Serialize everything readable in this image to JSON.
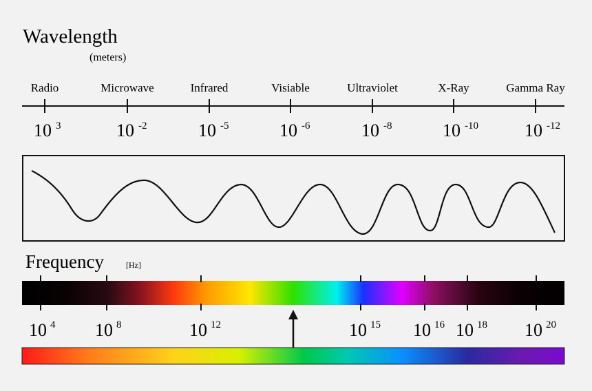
{
  "title": "Wavelength",
  "wavelength_unit": "(meters)",
  "frequency_title": "Frequency",
  "frequency_unit": "[Hz]",
  "bands": [
    {
      "name": "Radio",
      "base": "10",
      "exp": "3"
    },
    {
      "name": "Microwave",
      "base": "10",
      "exp": "-2"
    },
    {
      "name": "Infrared",
      "base": "10",
      "exp": "-5"
    },
    {
      "name": "Visiable",
      "base": "10",
      "exp": "-6"
    },
    {
      "name": "Ultraviolet",
      "base": "10",
      "exp": "-8"
    },
    {
      "name": "X-Ray",
      "base": "10",
      "exp": "-10"
    },
    {
      "name": "Gamma Ray",
      "base": "10",
      "exp": "-12"
    }
  ],
  "frequency_ticks": [
    {
      "base": "10",
      "exp": "4"
    },
    {
      "base": "10",
      "exp": "8"
    },
    {
      "base": "10",
      "exp": "12"
    },
    {
      "base": "10",
      "exp": "15"
    },
    {
      "base": "10",
      "exp": "16"
    },
    {
      "base": "10",
      "exp": "18"
    },
    {
      "base": "10",
      "exp": "20"
    }
  ],
  "colors": {
    "line": "#111111",
    "background": "#f2f2f2"
  }
}
